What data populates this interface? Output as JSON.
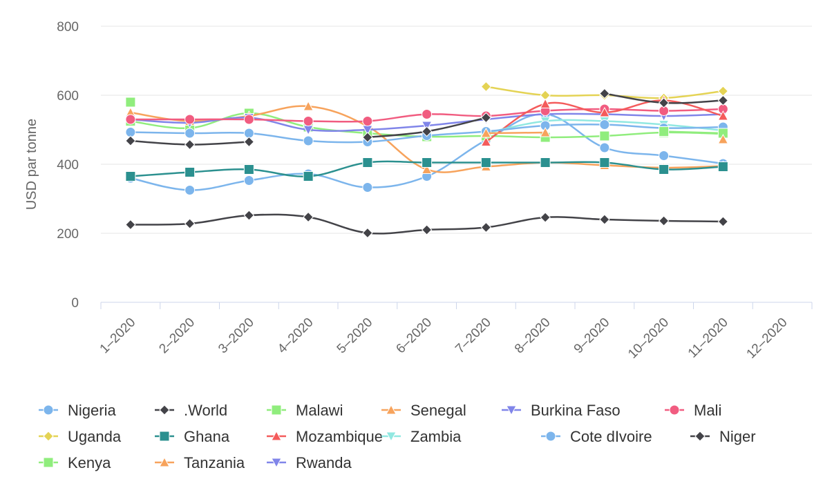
{
  "chart_data": {
    "type": "line",
    "title": "",
    "xlabel": "",
    "ylabel": "USD par tonne",
    "ylim": [
      0,
      800
    ],
    "yticks": [
      0,
      200,
      400,
      600,
      800
    ],
    "grid": true,
    "legend_position": "bottom",
    "categories": [
      "1-2020",
      "2-2020",
      "3-2020",
      "4-2020",
      "5-2020",
      "6-2020",
      "7-2020",
      "8-2020",
      "9-2020",
      "10-2020",
      "11-2020",
      "12-2020"
    ],
    "series": [
      {
        "name": "Nigeria",
        "color": "#7cb5ec",
        "marker": "circle",
        "values": [
          360,
          325,
          353,
          372,
          333,
          365,
          470,
          545,
          448,
          425,
          402,
          null
        ]
      },
      {
        "name": ".World",
        "color": "#434348",
        "marker": "diamond",
        "values": [
          225,
          228,
          252,
          247,
          201,
          210,
          217,
          246,
          240,
          236,
          234,
          null
        ]
      },
      {
        "name": "Malawi",
        "color": "#90ed7d",
        "marker": "square",
        "values": [
          525,
          505,
          548,
          508,
          490,
          480,
          482,
          478,
          482,
          492,
          488,
          null
        ]
      },
      {
        "name": "Senegal",
        "color": "#f7a35c",
        "marker": "triangle",
        "values": [
          550,
          525,
          540,
          568,
          510,
          385,
          393,
          405,
          397,
          390,
          395,
          null
        ]
      },
      {
        "name": "Burkina Faso",
        "color": "#8085e9",
        "marker": "triangle-down",
        "values": [
          530,
          520,
          535,
          500,
          500,
          512,
          530,
          545,
          545,
          540,
          545,
          null
        ]
      },
      {
        "name": "Mali",
        "color": "#f15c80",
        "marker": "circle",
        "values": [
          530,
          530,
          530,
          525,
          525,
          545,
          540,
          555,
          560,
          555,
          560,
          null
        ]
      },
      {
        "name": "Uganda",
        "color": "#e4d354",
        "marker": "diamond",
        "values": [
          null,
          null,
          null,
          null,
          null,
          null,
          625,
          600,
          600,
          592,
          612,
          null
        ]
      },
      {
        "name": "Ghana",
        "color": "#2b908f",
        "marker": "square",
        "values": [
          365,
          377,
          385,
          365,
          405,
          405,
          405,
          405,
          405,
          385,
          393,
          null
        ]
      },
      {
        "name": "Mozambique",
        "color": "#f45b5b",
        "marker": "triangle",
        "values": [
          null,
          null,
          null,
          null,
          null,
          null,
          465,
          575,
          550,
          585,
          540,
          null
        ]
      },
      {
        "name": "Zambia",
        "color": "#91e8e1",
        "marker": "triangle-down",
        "values": [
          null,
          null,
          null,
          null,
          null,
          null,
          490,
          525,
          525,
          515,
          498,
          null
        ]
      },
      {
        "name": "Cote dIvoire",
        "color": "#7cb5ec",
        "marker": "circle",
        "values": [
          493,
          490,
          490,
          468,
          465,
          483,
          495,
          512,
          515,
          505,
          508,
          null
        ]
      },
      {
        "name": "Niger",
        "color": "#434348",
        "marker": "diamond",
        "values": [
          468,
          457,
          465,
          null,
          478,
          495,
          535,
          null,
          605,
          578,
          585,
          null
        ]
      },
      {
        "name": "Kenya",
        "color": "#90ed7d",
        "marker": "square",
        "values": [
          580,
          null,
          null,
          null,
          null,
          null,
          null,
          null,
          null,
          495,
          490,
          null
        ]
      },
      {
        "name": "Tanzania",
        "color": "#f7a35c",
        "marker": "triangle",
        "values": [
          null,
          null,
          null,
          null,
          null,
          null,
          490,
          492,
          null,
          null,
          472,
          null
        ]
      },
      {
        "name": "Rwanda",
        "color": "#8085e9",
        "marker": "triangle-down",
        "values": [
          null,
          null,
          null,
          null,
          null,
          null,
          null,
          null,
          null,
          null,
          null,
          null
        ]
      }
    ]
  }
}
